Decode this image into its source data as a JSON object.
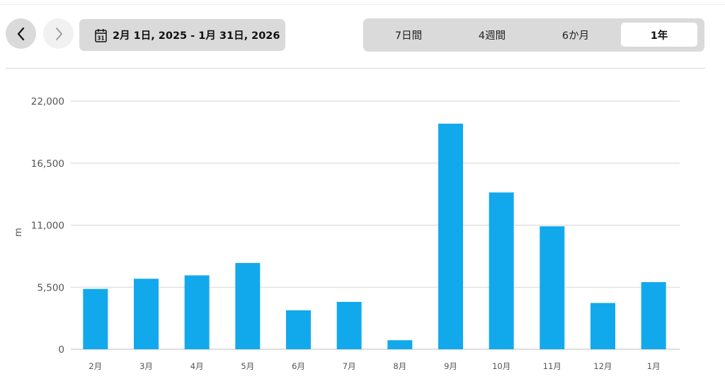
{
  "nav": {
    "prev_icon": "chevron-left-icon",
    "next_icon": "chevron-right-icon"
  },
  "date_range": {
    "icon": "calendar-icon",
    "calendar_day": "31",
    "label": "2月 1日, 2025 - 1月 31日, 2026"
  },
  "period_tabs": [
    {
      "label": "7日間",
      "active": false
    },
    {
      "label": "4週間",
      "active": false
    },
    {
      "label": "6か月",
      "active": false
    },
    {
      "label": "1年",
      "active": true
    }
  ],
  "colors": {
    "bar": "#12a9ec",
    "grid": "#d6d6d6",
    "axis_text": "#555555",
    "control_bg": "#dadada"
  },
  "chart_data": {
    "type": "bar",
    "categories": [
      "2月",
      "3月",
      "4月",
      "5月",
      "6月",
      "7月",
      "8月",
      "9月",
      "10月",
      "11月",
      "12月",
      "1月"
    ],
    "values": [
      5350,
      6250,
      6550,
      7650,
      3450,
      4200,
      800,
      20000,
      13900,
      10900,
      4100,
      5950
    ],
    "ylabel": "m",
    "ylim": [
      0,
      22000
    ],
    "yticks": [
      0,
      5500,
      11000,
      16500,
      22000
    ],
    "ytick_labels": [
      "0",
      "5,500",
      "11,000",
      "16,500",
      "22,000"
    ],
    "grid": true
  }
}
